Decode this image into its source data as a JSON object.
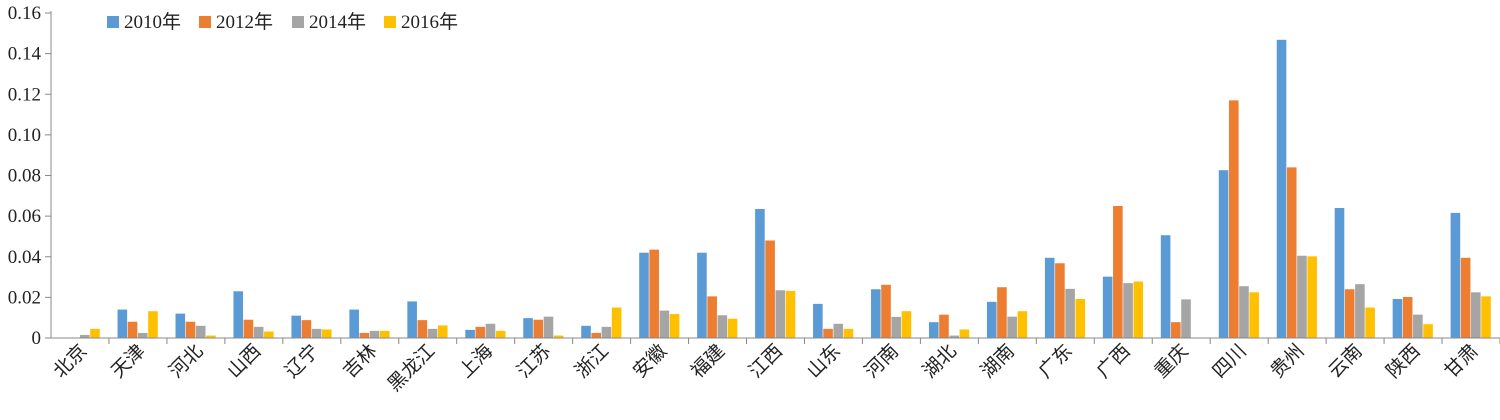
{
  "chart_data": {
    "type": "bar",
    "title": "",
    "xlabel": "",
    "ylabel": "",
    "ylim": [
      0,
      0.16
    ],
    "yticks": [
      "0",
      "0.02",
      "0.04",
      "0.06",
      "0.08",
      "0.10",
      "0.12",
      "0.14",
      "0.16"
    ],
    "grid": false,
    "legend_position": "top-left",
    "categories": [
      "北京",
      "天津",
      "河北",
      "山西",
      "辽宁",
      "吉林",
      "黑龙江",
      "上海",
      "江苏",
      "浙江",
      "安徽",
      "福建",
      "江西",
      "山东",
      "河南",
      "湖北",
      "湖南",
      "广东",
      "广西",
      "重庆",
      "四川",
      "贵州",
      "云南",
      "陕西",
      "甘肃"
    ],
    "series": [
      {
        "name": "2010年",
        "color": "#5b9bd5",
        "values": [
          0.0,
          0.014,
          0.012,
          0.023,
          0.011,
          0.014,
          0.018,
          0.004,
          0.0098,
          0.006,
          0.042,
          0.042,
          0.0635,
          0.0168,
          0.024,
          0.0078,
          0.0178,
          0.0395,
          0.0302,
          0.0506,
          0.0826,
          0.1468,
          0.064,
          0.0192,
          0.0616
        ]
      },
      {
        "name": "2012年",
        "color": "#ed7d31",
        "values": [
          0.0,
          0.008,
          0.008,
          0.009,
          0.0088,
          0.0025,
          0.0088,
          0.0055,
          0.009,
          0.0025,
          0.0435,
          0.0205,
          0.048,
          0.0045,
          0.0262,
          0.0115,
          0.025,
          0.0368,
          0.065,
          0.0078,
          0.117,
          0.084,
          0.024,
          0.0202,
          0.0395
        ]
      },
      {
        "name": "2014年",
        "color": "#a5a5a5",
        "values": [
          0.0015,
          0.0025,
          0.006,
          0.0055,
          0.0045,
          0.0035,
          0.0045,
          0.007,
          0.0105,
          0.0055,
          0.0135,
          0.0112,
          0.0235,
          0.007,
          0.0104,
          0.0012,
          0.0105,
          0.0242,
          0.027,
          0.019,
          0.0255,
          0.0405,
          0.0265,
          0.0115,
          0.0225
        ]
      },
      {
        "name": "2016年",
        "color": "#ffc000",
        "values": [
          0.0045,
          0.0132,
          0.0012,
          0.0032,
          0.0042,
          0.0035,
          0.0062,
          0.0035,
          0.0012,
          0.015,
          0.0118,
          0.0095,
          0.0232,
          0.0045,
          0.0132,
          0.0042,
          0.0132,
          0.0192,
          0.0278,
          0.0,
          0.0225,
          0.0402,
          0.015,
          0.0068,
          0.0205
        ]
      }
    ]
  }
}
